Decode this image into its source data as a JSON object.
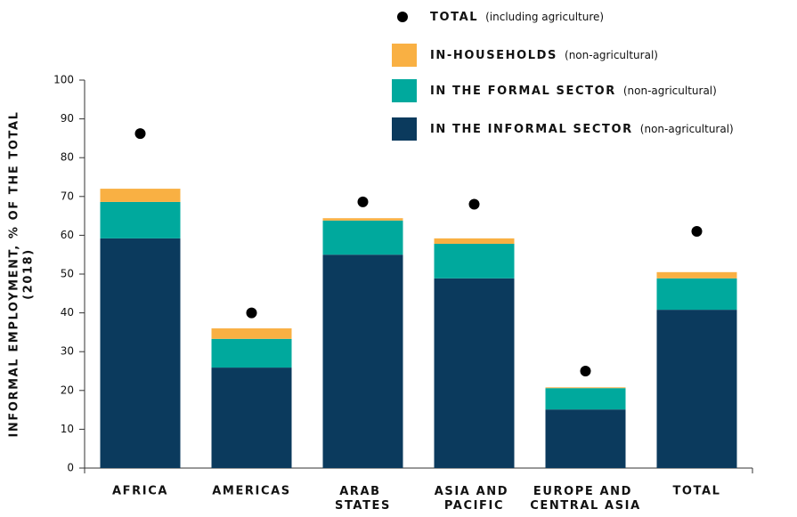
{
  "chart_data": {
    "type": "stacked_bar_with_dots",
    "ylabel": "INFORMAL EMPLOYMENT, % OF THE TOTAL",
    "ylabel_note": "(2018)",
    "categories": [
      "AFRICA",
      "AMERICAS",
      "ARAB STATES",
      "ASIA AND PACIFIC",
      "EUROPE AND CENTRAL ASIA",
      "TOTAL"
    ],
    "series": [
      {
        "name": "IN THE INFORMAL SECTOR",
        "note": "(non-agricultural)",
        "color": "#0b3a5d",
        "values": [
          59.2,
          25.9,
          55,
          48.9,
          15.1,
          40.8
        ]
      },
      {
        "name": "IN THE FORMAL SECTOR",
        "note": "(non-agricultural)",
        "color": "#00a99d",
        "values": [
          9.4,
          7.4,
          8.8,
          8.9,
          5.5,
          8.1
        ]
      },
      {
        "name": "IN-HOUSEHOLDS",
        "note": "(non-agricultural)",
        "color": "#f9b043",
        "values": [
          3.4,
          2.7,
          0.6,
          1.4,
          0.2,
          1.6
        ]
      }
    ],
    "dots": {
      "name": "TOTAL",
      "note": "(including agriculture)",
      "color": "#000000",
      "values": [
        86.2,
        40,
        68.6,
        68,
        25,
        61
      ]
    },
    "ylim": [
      0,
      100
    ],
    "yticks": [
      0,
      10,
      20,
      30,
      40,
      50,
      60,
      70,
      80,
      90,
      100
    ]
  }
}
